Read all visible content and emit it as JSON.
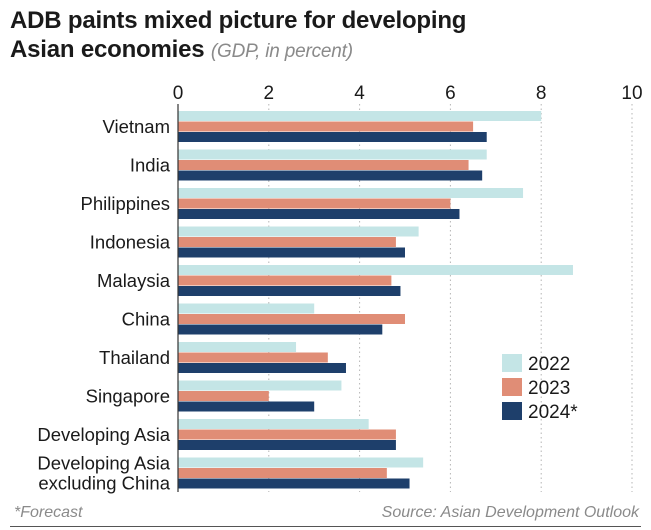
{
  "title_line1": "ADB paints mixed picture for developing",
  "title_line2": "Asian economies",
  "subtitle": "(GDP, in percent)",
  "footnote": "*Forecast",
  "source": "Source: Asian Development Outlook",
  "chart_data": {
    "type": "bar",
    "orientation": "horizontal",
    "categories": [
      [
        "Vietnam"
      ],
      [
        "India"
      ],
      [
        "Philippines"
      ],
      [
        "Indonesia"
      ],
      [
        "Malaysia"
      ],
      [
        "China"
      ],
      [
        "Thailand"
      ],
      [
        "Singapore"
      ],
      [
        "Developing Asia"
      ],
      [
        "Developing Asia",
        "excluding China"
      ]
    ],
    "series": [
      {
        "name": "2022",
        "color": "#c4e5e6",
        "values": [
          8.0,
          6.8,
          7.6,
          5.3,
          8.7,
          3.0,
          2.6,
          3.6,
          4.2,
          5.4
        ]
      },
      {
        "name": "2023",
        "color": "#e08d76",
        "values": [
          6.5,
          6.4,
          6.0,
          4.8,
          4.7,
          5.0,
          3.3,
          2.0,
          4.8,
          4.6
        ]
      },
      {
        "name": "2024*",
        "color": "#1e3f6b",
        "values": [
          6.8,
          6.7,
          6.2,
          5.0,
          4.9,
          4.5,
          3.7,
          3.0,
          4.8,
          5.1
        ]
      }
    ],
    "xlim": [
      0,
      10
    ],
    "xticks": [
      0,
      2,
      4,
      6,
      8,
      10
    ],
    "grid": true,
    "legend_position": "bottom-right"
  }
}
